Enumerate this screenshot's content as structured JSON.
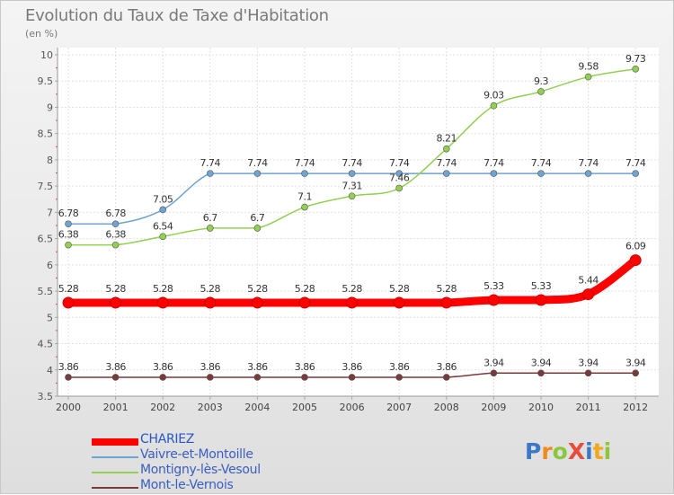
{
  "title": "Evolution du Taux de Taxe d'Habitation",
  "subtitle": "(en %)",
  "logo": {
    "letters": [
      {
        "ch": "P",
        "color": "#3a78c8"
      },
      {
        "ch": "r",
        "color": "#f08a1c"
      },
      {
        "ch": "o",
        "color": "#8cc63e"
      },
      {
        "ch": "X",
        "color": "#e84c3d"
      },
      {
        "ch": "i",
        "color": "#3a78c8"
      },
      {
        "ch": "t",
        "color": "#f0a81c"
      },
      {
        "ch": "i",
        "color": "#8cc63e"
      }
    ]
  },
  "chart_data": {
    "type": "line",
    "title": "Evolution du Taux de Taxe d'Habitation",
    "subtitle": "(en %)",
    "x": [
      "2000",
      "2001",
      "2002",
      "2003",
      "2004",
      "2005",
      "2006",
      "2007",
      "2008",
      "2009",
      "2010",
      "2011",
      "2012"
    ],
    "y_ticks": [
      "3.5",
      "4",
      "4.5",
      "5",
      "5.5",
      "6",
      "6.5",
      "7",
      "7.5",
      "8",
      "8.5",
      "9",
      "9.5",
      "10"
    ],
    "ylim": [
      3.5,
      10
    ],
    "grid": true,
    "legend_position": "bottom-left",
    "series": [
      {
        "name": "CHARIEZ",
        "color": "#ff0000",
        "values": [
          5.28,
          5.28,
          5.28,
          5.28,
          5.28,
          5.28,
          5.28,
          5.28,
          5.28,
          5.33,
          5.33,
          5.44,
          6.09
        ],
        "labels": [
          "5.28",
          "5.28",
          "5.28",
          "5.28",
          "5.28",
          "5.28",
          "5.28",
          "5.28",
          "5.28",
          "5.33",
          "5.33",
          "5.44",
          "6.09"
        ]
      },
      {
        "name": "Vaivre-et-Montoille",
        "color": "#6fa3d2",
        "values": [
          6.78,
          6.78,
          7.05,
          7.74,
          7.74,
          7.74,
          7.74,
          7.74,
          7.74,
          7.74,
          7.74,
          7.74,
          7.74
        ],
        "labels": [
          "6.78",
          "6.78",
          "7.05",
          "7.74",
          "7.74",
          "7.74",
          "7.74",
          "7.74",
          "7.74",
          "7.74",
          "7.74",
          "7.74",
          "7.74"
        ]
      },
      {
        "name": "Montigny-lès-Vesoul",
        "color": "#92d050",
        "values": [
          6.38,
          6.38,
          6.54,
          6.7,
          6.7,
          7.1,
          7.31,
          7.46,
          8.21,
          9.03,
          9.3,
          9.58,
          9.73
        ],
        "labels": [
          "6.38",
          "6.38",
          "6.54",
          "6.7",
          "6.7",
          "7.1",
          "7.31",
          "7.46",
          "8.21",
          "9.03",
          "9.3",
          "9.58",
          "9.73"
        ]
      },
      {
        "name": "Mont-le-Vernois",
        "color": "#7a3a3a",
        "values": [
          3.86,
          3.86,
          3.86,
          3.86,
          3.86,
          3.86,
          3.86,
          3.86,
          3.86,
          3.94,
          3.94,
          3.94,
          3.94
        ],
        "labels": [
          "3.86",
          "3.86",
          "3.86",
          "3.86",
          "3.86",
          "3.86",
          "3.86",
          "3.86",
          "3.86",
          "3.94",
          "3.94",
          "3.94",
          "3.94"
        ]
      }
    ]
  }
}
